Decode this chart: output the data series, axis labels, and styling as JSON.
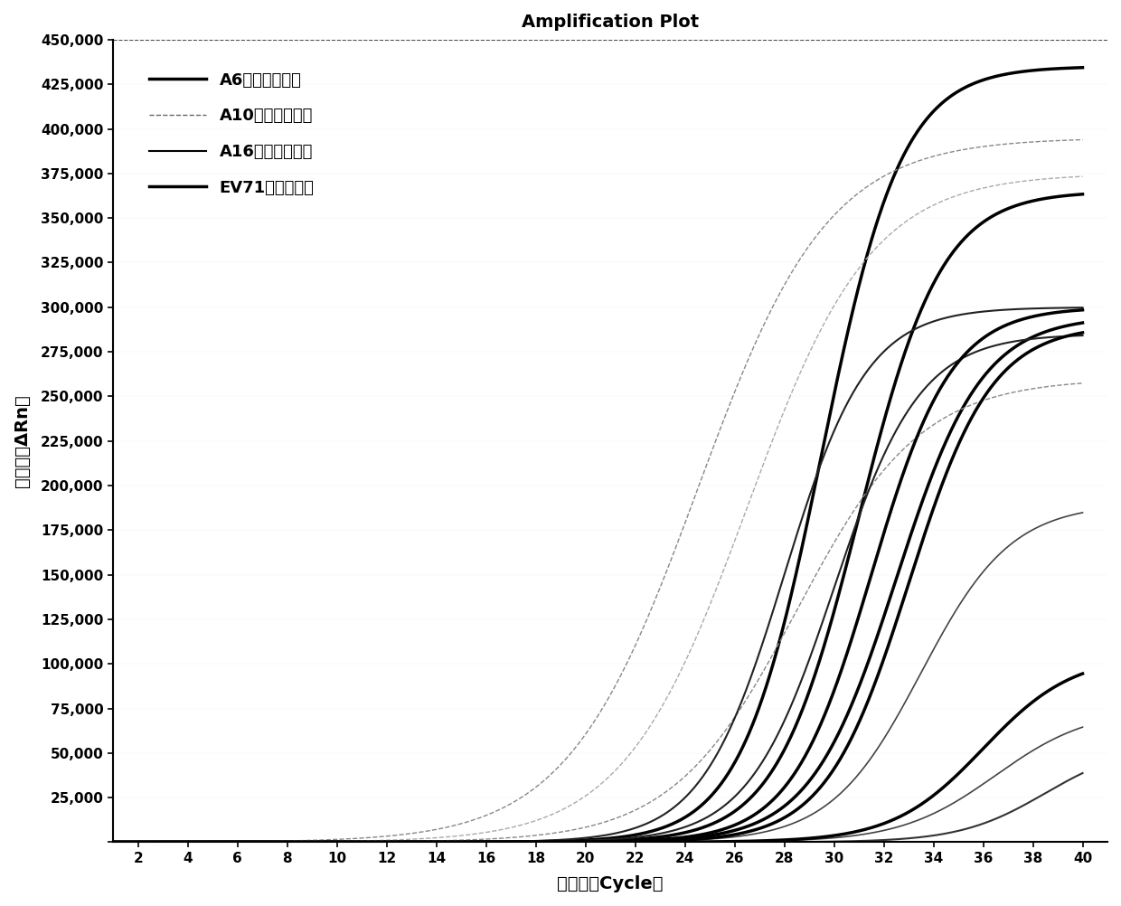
{
  "title": "Amplification Plot",
  "xlabel": "循环数（Cycle）",
  "ylabel": "荧光値（ΔRn）",
  "xlim": [
    1,
    41
  ],
  "ylim": [
    0,
    450000
  ],
  "xticks": [
    2,
    4,
    6,
    8,
    10,
    12,
    14,
    16,
    18,
    20,
    22,
    24,
    26,
    28,
    30,
    32,
    34,
    36,
    38,
    40
  ],
  "yticks": [
    0,
    25000,
    50000,
    75000,
    100000,
    125000,
    150000,
    175000,
    200000,
    225000,
    250000,
    275000,
    300000,
    325000,
    350000,
    375000,
    400000,
    425000,
    450000
  ],
  "ytick_labels": [
    "",
    "25,000",
    "50,000",
    "75,000",
    "100,000",
    "125,000",
    "150,000",
    "175,000",
    "200,000",
    "225,000",
    "250,000",
    "275,000",
    "300,000",
    "325,000",
    "350,000",
    "375,000",
    "400,000",
    "425,000",
    "450,000"
  ],
  "legend_entries": [
    {
      "label": "A6型柯萨奇病毒",
      "lw": 2.5,
      "ls": "solid",
      "color": "#000000"
    },
    {
      "label": "A10型柯萨奇病毒",
      "lw": 1.0,
      "ls": "dashed",
      "color": "#666666"
    },
    {
      "label": "A16型柯萨奇病毒",
      "lw": 1.5,
      "ls": "solid",
      "color": "#000000"
    },
    {
      "label": "EV71型肠道病毒",
      "lw": 2.5,
      "ls": "solid",
      "color": "#000000"
    }
  ],
  "curves": [
    {
      "midpoint": 29.5,
      "steepness": 0.62,
      "plateau": 435000,
      "lw": 2.5,
      "ls": "solid",
      "color": "#000000",
      "group": "A6"
    },
    {
      "midpoint": 31.0,
      "steepness": 0.6,
      "plateau": 365000,
      "lw": 2.5,
      "ls": "solid",
      "color": "#000000",
      "group": "A6"
    },
    {
      "midpoint": 32.5,
      "steepness": 0.58,
      "plateau": 295000,
      "lw": 2.5,
      "ls": "solid",
      "color": "#000000",
      "group": "A6"
    },
    {
      "midpoint": 24.5,
      "steepness": 0.38,
      "plateau": 395000,
      "lw": 1.0,
      "ls": "dashed",
      "color": "#888888",
      "group": "A10"
    },
    {
      "midpoint": 26.5,
      "steepness": 0.4,
      "plateau": 375000,
      "lw": 1.0,
      "ls": "dashed",
      "color": "#aaaaaa",
      "group": "A10"
    },
    {
      "midpoint": 28.5,
      "steepness": 0.4,
      "plateau": 260000,
      "lw": 1.0,
      "ls": "dashed",
      "color": "#888888",
      "group": "A10"
    },
    {
      "midpoint": 28.0,
      "steepness": 0.6,
      "plateau": 300000,
      "lw": 1.5,
      "ls": "solid",
      "color": "#222222",
      "group": "A16"
    },
    {
      "midpoint": 30.0,
      "steepness": 0.58,
      "plateau": 285000,
      "lw": 1.5,
      "ls": "solid",
      "color": "#222222",
      "group": "A16"
    },
    {
      "midpoint": 33.5,
      "steepness": 0.55,
      "plateau": 190000,
      "lw": 1.2,
      "ls": "solid",
      "color": "#444444",
      "group": "A16"
    },
    {
      "midpoint": 36.5,
      "steepness": 0.52,
      "plateau": 75000,
      "lw": 1.2,
      "ls": "solid",
      "color": "#444444",
      "group": "A16"
    },
    {
      "midpoint": 31.5,
      "steepness": 0.62,
      "plateau": 300000,
      "lw": 2.5,
      "ls": "solid",
      "color": "#000000",
      "group": "EV71"
    },
    {
      "midpoint": 33.0,
      "steepness": 0.6,
      "plateau": 290000,
      "lw": 2.5,
      "ls": "solid",
      "color": "#000000",
      "group": "EV71"
    },
    {
      "midpoint": 36.0,
      "steepness": 0.55,
      "plateau": 105000,
      "lw": 2.5,
      "ls": "solid",
      "color": "#000000",
      "group": "EV71"
    },
    {
      "midpoint": 38.5,
      "steepness": 0.58,
      "plateau": 55000,
      "lw": 1.5,
      "ls": "solid",
      "color": "#333333",
      "group": "EV71"
    }
  ],
  "background_color": "#ffffff",
  "title_fontsize": 14,
  "label_fontsize": 14,
  "tick_fontsize": 11,
  "legend_fontsize": 13
}
